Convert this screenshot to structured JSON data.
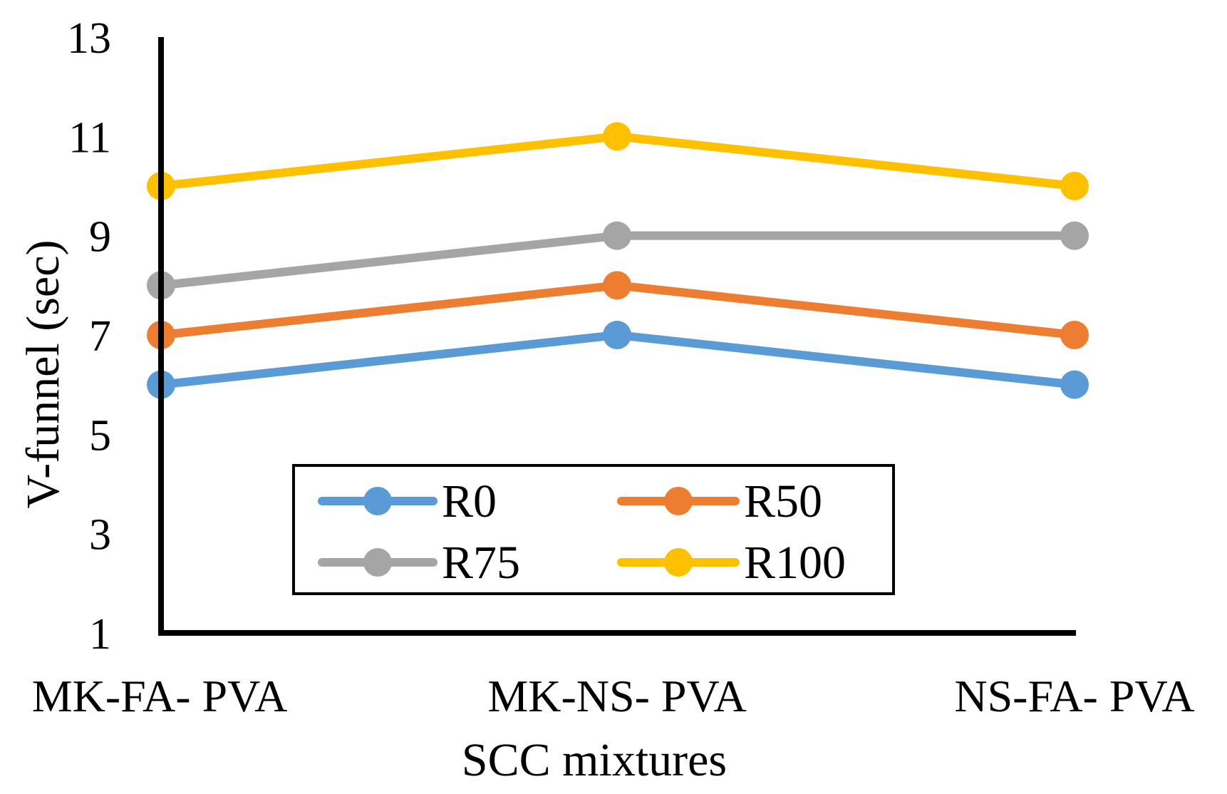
{
  "chart_data": {
    "type": "line",
    "title": "",
    "xlabel": "SCC mixtures",
    "ylabel": "V-funnel (sec)",
    "categories": [
      "MK-FA- PVA",
      "MK-NS- PVA",
      "NS-FA- PVA"
    ],
    "ylim": [
      1,
      13
    ],
    "yticks": [
      1,
      3,
      5,
      7,
      9,
      11,
      13
    ],
    "grid": false,
    "legend_position": "lower-center",
    "series": [
      {
        "name": "R0",
        "values": [
          6,
          7,
          6
        ],
        "color": "#5B9BD5"
      },
      {
        "name": "R50",
        "values": [
          7,
          8,
          7
        ],
        "color": "#ED7D31"
      },
      {
        "name": "R75",
        "values": [
          8,
          9,
          9
        ],
        "color": "#A5A5A5"
      },
      {
        "name": "R100",
        "values": [
          10,
          11,
          10
        ],
        "color": "#FFC000"
      }
    ]
  }
}
